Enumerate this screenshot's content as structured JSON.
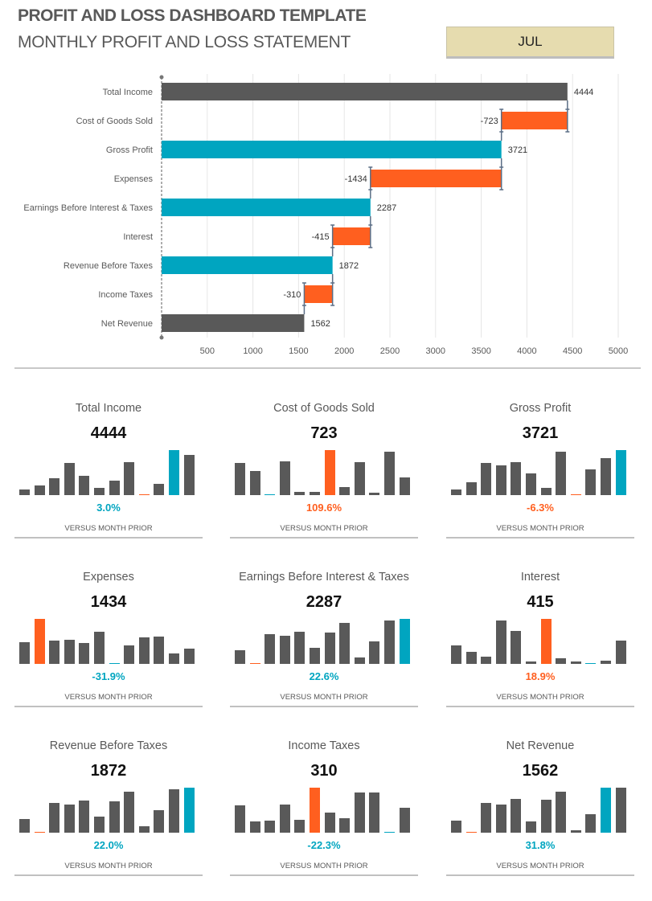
{
  "header": {
    "title": "PROFIT AND LOSS DASHBOARD TEMPLATE",
    "subtitle": "MONTHLY PROFIT AND LOSS STATEMENT",
    "month": "JUL"
  },
  "colors": {
    "total": "#595959",
    "negative": "#FF5F1F",
    "subtotal": "#00A5C0",
    "connector": "#5B6E86",
    "grid": "#E6E6E6"
  },
  "chart_data": [
    {
      "type": "waterfall",
      "orientation": "horizontal",
      "categories": [
        "Total Income",
        "Cost of Goods Sold",
        "Gross Profit",
        "Expenses",
        "Earnings Before Interest & Taxes",
        "Interest",
        "Revenue Before Taxes",
        "Income Taxes",
        "Net Revenue"
      ],
      "values": [
        4444,
        -723,
        3721,
        -1434,
        2287,
        -415,
        1872,
        -310,
        1562
      ],
      "data_labels": [
        "4444",
        "-723",
        "3721",
        "-1434",
        "2287",
        "-415",
        "1872",
        "-310",
        "1562"
      ],
      "kinds": [
        "total",
        "negative",
        "subtotal",
        "negative",
        "subtotal",
        "negative",
        "subtotal",
        "negative",
        "total"
      ],
      "xlim": [
        0,
        5000
      ],
      "xticks": [
        "500",
        "1000",
        "1500",
        "2000",
        "2500",
        "3000",
        "3500",
        "4000",
        "4500",
        "5000"
      ],
      "grid": true
    }
  ],
  "panels": [
    {
      "title": "Total Income",
      "value": "4444",
      "change": "3.0%",
      "change_color": "#00A5C0",
      "note": "VERSUS MONTH PRIOR",
      "bars": [
        13,
        21,
        38,
        71,
        43,
        16,
        32,
        73,
        1,
        25,
        100,
        89
      ],
      "highlight": {
        "8": "#FF5F1F",
        "10": "#00A5C0"
      }
    },
    {
      "title": "Cost of Goods Sold",
      "value": "723",
      "change": "109.6%",
      "change_color": "#FF5F1F",
      "note": "VERSUS MONTH PRIOR",
      "bars": [
        71,
        54,
        1,
        75,
        7,
        7,
        100,
        18,
        73,
        5,
        96,
        39
      ],
      "highlight": {
        "2": "#00A5C0",
        "6": "#FF5F1F"
      }
    },
    {
      "title": "Gross Profit",
      "value": "3721",
      "change": "-6.3%",
      "change_color": "#FF5F1F",
      "note": "VERSUS MONTH PRIOR",
      "bars": [
        13,
        29,
        71,
        66,
        73,
        48,
        16,
        96,
        1,
        57,
        82,
        100
      ],
      "highlight": {
        "8": "#FF5F1F",
        "11": "#00A5C0"
      }
    },
    {
      "title": "Expenses",
      "value": "1434",
      "change": "-31.9%",
      "change_color": "#00A5C0",
      "note": "VERSUS MONTH PRIOR",
      "bars": [
        48,
        100,
        52,
        54,
        46,
        71,
        1,
        41,
        59,
        61,
        23,
        34
      ],
      "highlight": {
        "1": "#FF5F1F",
        "6": "#00A5C0"
      }
    },
    {
      "title": "Earnings Before Interest & Taxes",
      "value": "2287",
      "change": "22.6%",
      "change_color": "#00A5C0",
      "note": "VERSUS MONTH PRIOR",
      "bars": [
        30,
        1,
        66,
        63,
        71,
        36,
        70,
        91,
        14,
        50,
        96,
        100
      ],
      "highlight": {
        "1": "#FF5F1F",
        "11": "#00A5C0"
      }
    },
    {
      "title": "Interest",
      "value": "415",
      "change": "18.9%",
      "change_color": "#FF5F1F",
      "note": "VERSUS MONTH PRIOR",
      "bars": [
        41,
        27,
        16,
        96,
        73,
        5,
        100,
        13,
        5,
        1,
        7,
        52
      ],
      "highlight": {
        "6": "#FF5F1F",
        "9": "#00A5C0"
      }
    },
    {
      "title": "Revenue Before Taxes",
      "value": "1872",
      "change": "22.0%",
      "change_color": "#00A5C0",
      "note": "VERSUS MONTH PRIOR",
      "bars": [
        30,
        1,
        66,
        63,
        71,
        36,
        70,
        91,
        14,
        50,
        96,
        100
      ],
      "highlight": {
        "1": "#FF5F1F",
        "11": "#00A5C0"
      }
    },
    {
      "title": "Income Taxes",
      "value": "310",
      "change": "-22.3%",
      "change_color": "#00A5C0",
      "note": "VERSUS MONTH PRIOR",
      "bars": [
        61,
        25,
        27,
        63,
        29,
        100,
        45,
        32,
        89,
        89,
        1,
        55
      ],
      "highlight": {
        "5": "#FF5F1F",
        "10": "#00A5C0"
      }
    },
    {
      "title": "Net Revenue",
      "value": "1562",
      "change": "31.8%",
      "change_color": "#00A5C0",
      "note": "VERSUS MONTH PRIOR",
      "bars": [
        27,
        1,
        66,
        63,
        75,
        25,
        73,
        91,
        5,
        41,
        100,
        100
      ],
      "highlight": {
        "1": "#FF5F1F",
        "10": "#00A5C0"
      }
    }
  ]
}
